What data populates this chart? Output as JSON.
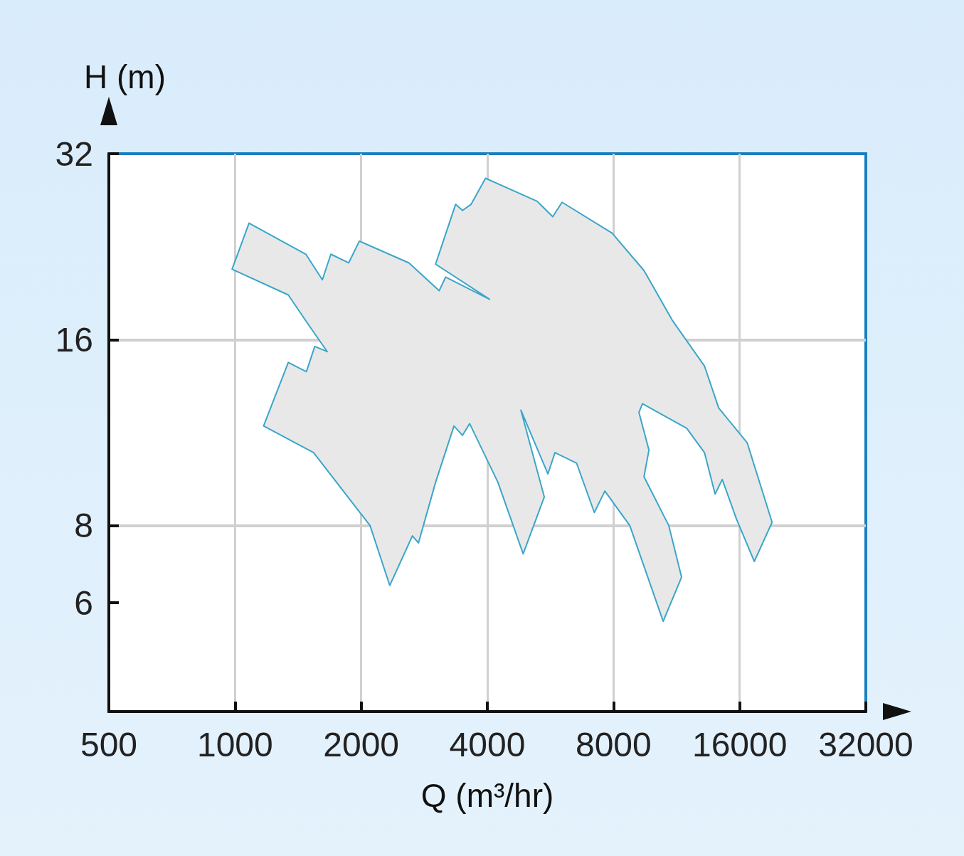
{
  "chart_data": {
    "type": "area",
    "xlabel": "Q (m³/hr)",
    "ylabel": "H (m)",
    "log": "xy",
    "xlim": [
      500,
      32000
    ],
    "ylim": [
      4,
      32
    ],
    "xticks": [
      500,
      1000,
      2000,
      4000,
      8000,
      16000,
      32000
    ],
    "yticks": [
      6,
      8,
      16,
      32
    ],
    "grid": true,
    "series": [
      {
        "color": "#e8e8e8",
        "x": [
          984,
          1080,
          1476,
          1616,
          1693,
          1867,
          1980,
          2600,
          3070,
          3180,
          4050,
          3010,
          3360,
          3490,
          3660,
          3960,
          5260,
          5730,
          6030,
          7940,
          9460,
          11050,
          13190,
          14260,
          16670,
          19120,
          17340,
          15720,
          14540,
          13980,
          13190,
          11960,
          9380,
          9200,
          9720,
          9460,
          10840,
          11630,
          10510,
          8750,
          7630,
          7200,
          6530,
          5800,
          5580,
          4810,
          5470,
          4870,
          4240,
          3630,
          3490,
          3330,
          3010,
          2740,
          2650,
          2340,
          2100,
          1540,
          1170,
          1340,
          1480,
          1550,
          1660,
          1490,
          1340
        ],
        "values": [
          20.8,
          24.7,
          22.0,
          20.0,
          22.0,
          21.3,
          23.1,
          21.3,
          19.2,
          20.2,
          18.6,
          21.2,
          26.5,
          25.9,
          26.5,
          29.2,
          26.8,
          25.3,
          26.7,
          23.8,
          20.7,
          17.2,
          14.5,
          12.4,
          10.9,
          8.1,
          7.0,
          8.2,
          9.5,
          9.0,
          10.5,
          11.5,
          12.6,
          12.2,
          10.6,
          9.6,
          8.0,
          6.6,
          5.6,
          8.0,
          9.1,
          8.4,
          10.1,
          10.5,
          9.7,
          12.3,
          8.9,
          7.2,
          9.4,
          11.7,
          11.2,
          11.6,
          9.4,
          7.5,
          7.7,
          6.4,
          8.0,
          10.5,
          11.6,
          14.7,
          14.2,
          15.6,
          15.3,
          17.0,
          18.9
        ]
      }
    ]
  }
}
